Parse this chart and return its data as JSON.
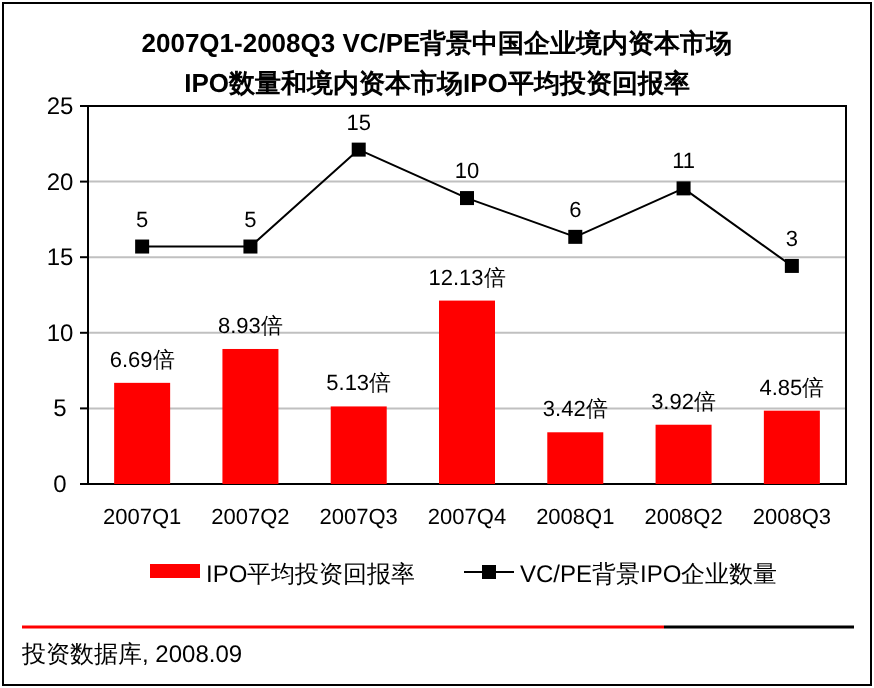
{
  "chart_data": {
    "type": "bar",
    "title": "2007Q1-2008Q3  VC/PE背景中国企业境内资本市场",
    "subtitle": "IPO数量和境内资本市场IPO平均投资回报率",
    "categories": [
      "2007Q1",
      "2007Q2",
      "2007Q3",
      "2007Q4",
      "2008Q1",
      "2008Q2",
      "2008Q3"
    ],
    "series": [
      {
        "name": "IPO平均投资回报率",
        "color": "#ff0000",
        "values": [
          6.69,
          8.93,
          5.13,
          12.13,
          3.42,
          3.92,
          4.85
        ],
        "value_labels": [
          "6.69倍",
          "8.93倍",
          "5.13倍",
          "12.13倍",
          "3.42倍",
          "3.92倍",
          "4.85倍"
        ]
      },
      {
        "name": "VC/PE背景IPO企业数量",
        "type": "line",
        "axis": "y2",
        "color": "#000000",
        "marker": "square",
        "values": [
          5,
          5,
          15,
          10,
          6,
          11,
          3
        ],
        "value_labels": [
          "5",
          "5",
          "15",
          "10",
          "6",
          "11",
          "3"
        ]
      }
    ],
    "ylim": [
      0,
      25
    ],
    "yticks": [
      0,
      5,
      10,
      15,
      20,
      25
    ],
    "y2lim": [
      -19.5,
      19.5
    ],
    "grid": "y",
    "legend": "bottom",
    "annotations": [
      "投资数据库, 2008.09"
    ]
  }
}
